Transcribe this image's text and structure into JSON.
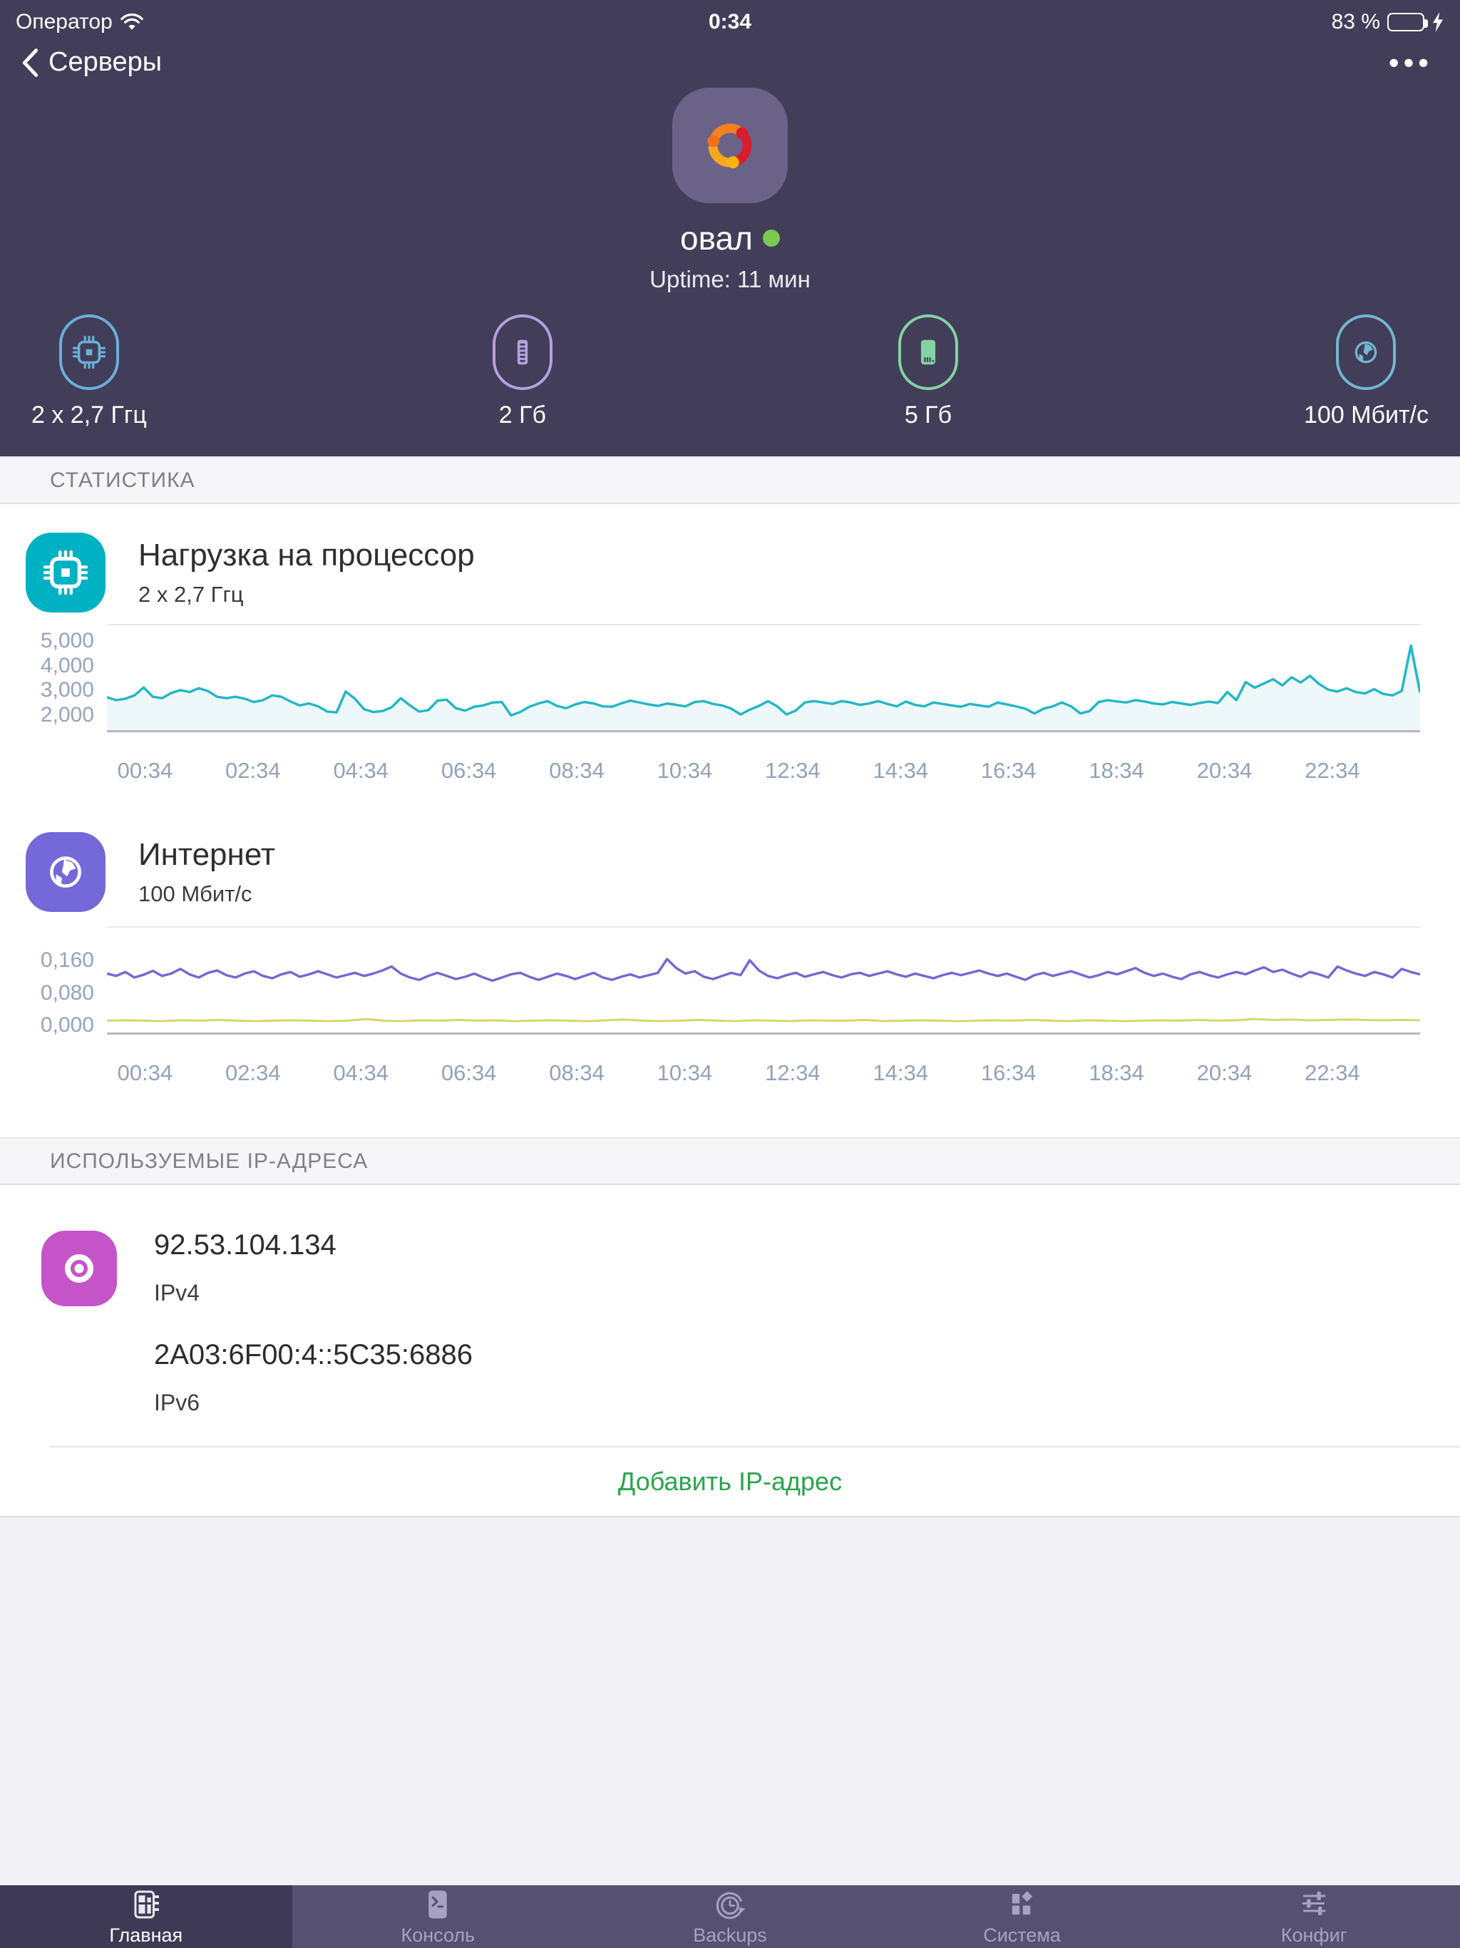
{
  "status_bar": {
    "carrier": "Оператор",
    "time": "0:34",
    "battery_percent": "83 %",
    "battery_level": 83
  },
  "nav": {
    "back_label": "Серверы",
    "more_label": "•••"
  },
  "server": {
    "name": "овал",
    "uptime": "Uptime: 11 мин",
    "os": "ubuntu",
    "status_color": "#7cc851"
  },
  "specs": [
    {
      "icon": "cpu-icon",
      "label": "2 x 2,7 Ггц",
      "color": "#68b0d9"
    },
    {
      "icon": "ram-icon",
      "label": "2 Гб",
      "color": "#b3a2de"
    },
    {
      "icon": "disk-icon",
      "label": "5 Гб",
      "color": "#83d2a4"
    },
    {
      "icon": "network-icon",
      "label": "100 Мбит/с",
      "color": "#72b7cf"
    }
  ],
  "sections": {
    "statistics": "СТАТИСТИКА",
    "ip_addresses": "ИСПОЛЬЗУЕМЫЕ IP-АДРЕСА"
  },
  "cpu_card": {
    "title": "Нагрузка на процессор",
    "subtitle": "2 x 2,7 Ггц",
    "accent": "#00b1c4"
  },
  "net_card": {
    "title": "Интернет",
    "subtitle": "100 Мбит/с",
    "accent": "#7568d8"
  },
  "chart_data": [
    {
      "type": "line",
      "title": "Нагрузка на процессор",
      "ylabel": "",
      "xlabel": "",
      "ylim": [
        1300,
        5700
      ],
      "grid": false,
      "yticks": [
        {
          "value": 2000,
          "label": "2,000"
        },
        {
          "value": 3000,
          "label": "3,000"
        },
        {
          "value": 4000,
          "label": "4,000"
        },
        {
          "value": 5000,
          "label": "5,000"
        }
      ],
      "x_labels": [
        "00:34",
        "02:34",
        "04:34",
        "06:34",
        "08:34",
        "10:34",
        "12:34",
        "14:34",
        "16:34",
        "18:34",
        "20:34",
        "22:34"
      ],
      "x_first_frac": 0.029,
      "x_step_frac": 0.0822,
      "series": [
        {
          "color": "#22b6c7",
          "stroke_width": 3.5,
          "fill": "#eef8fa",
          "values": [
            2680,
            2560,
            2620,
            2760,
            3090,
            2700,
            2640,
            2860,
            2980,
            2900,
            3060,
            2940,
            2700,
            2640,
            2700,
            2620,
            2480,
            2560,
            2760,
            2700,
            2500,
            2340,
            2420,
            2300,
            2080,
            2040,
            2920,
            2620,
            2180,
            2060,
            2100,
            2260,
            2640,
            2340,
            2080,
            2140,
            2540,
            2580,
            2220,
            2120,
            2280,
            2340,
            2460,
            2480,
            1920,
            2060,
            2280,
            2420,
            2520,
            2320,
            2220,
            2380,
            2480,
            2420,
            2300,
            2280,
            2420,
            2540,
            2460,
            2380,
            2320,
            2420,
            2360,
            2300,
            2480,
            2520,
            2400,
            2340,
            2200,
            1960,
            2160,
            2320,
            2520,
            2300,
            1960,
            2120,
            2460,
            2520,
            2460,
            2400,
            2520,
            2460,
            2360,
            2420,
            2520,
            2400,
            2300,
            2500,
            2360,
            2300,
            2460,
            2400,
            2340,
            2280,
            2400,
            2340,
            2280,
            2460,
            2380,
            2300,
            2200,
            2000,
            2200,
            2300,
            2460,
            2300,
            2000,
            2100,
            2480,
            2560,
            2500,
            2460,
            2560,
            2500,
            2420,
            2380,
            2480,
            2420,
            2360,
            2440,
            2500,
            2440,
            2900,
            2560,
            3320,
            3080,
            3260,
            3440,
            3180,
            3520,
            3300,
            3580,
            3240,
            3000,
            2920,
            3060,
            2900,
            2840,
            3020,
            2820,
            2760,
            2940,
            4850,
            2880
          ]
        }
      ]
    },
    {
      "type": "line",
      "title": "Интернет",
      "ylabel": "",
      "xlabel": "",
      "ylim": [
        -0.022,
        0.245
      ],
      "grid": false,
      "yticks": [
        {
          "value": 0.0,
          "label": "0,000"
        },
        {
          "value": 0.08,
          "label": "0,080"
        },
        {
          "value": 0.16,
          "label": "0,160"
        }
      ],
      "x_labels": [
        "00:34",
        "02:34",
        "04:34",
        "06:34",
        "08:34",
        "10:34",
        "12:34",
        "14:34",
        "16:34",
        "18:34",
        "20:34",
        "22:34"
      ],
      "x_first_frac": 0.029,
      "x_step_frac": 0.0822,
      "series": [
        {
          "color": "#7468d1",
          "stroke_width": 3.5,
          "values": [
            0.128,
            0.122,
            0.132,
            0.118,
            0.125,
            0.135,
            0.122,
            0.128,
            0.14,
            0.126,
            0.118,
            0.13,
            0.136,
            0.124,
            0.118,
            0.128,
            0.134,
            0.122,
            0.116,
            0.126,
            0.132,
            0.12,
            0.126,
            0.134,
            0.126,
            0.118,
            0.124,
            0.13,
            0.122,
            0.128,
            0.136,
            0.146,
            0.128,
            0.118,
            0.112,
            0.122,
            0.13,
            0.122,
            0.114,
            0.12,
            0.128,
            0.118,
            0.11,
            0.118,
            0.126,
            0.13,
            0.12,
            0.112,
            0.12,
            0.128,
            0.122,
            0.114,
            0.122,
            0.13,
            0.118,
            0.112,
            0.12,
            0.126,
            0.118,
            0.124,
            0.13,
            0.165,
            0.142,
            0.128,
            0.134,
            0.12,
            0.114,
            0.122,
            0.13,
            0.124,
            0.162,
            0.136,
            0.122,
            0.116,
            0.124,
            0.13,
            0.12,
            0.126,
            0.132,
            0.124,
            0.118,
            0.126,
            0.13,
            0.122,
            0.128,
            0.134,
            0.126,
            0.12,
            0.128,
            0.122,
            0.116,
            0.124,
            0.13,
            0.124,
            0.13,
            0.136,
            0.128,
            0.122,
            0.128,
            0.12,
            0.112,
            0.124,
            0.13,
            0.122,
            0.128,
            0.134,
            0.126,
            0.118,
            0.124,
            0.132,
            0.126,
            0.134,
            0.142,
            0.13,
            0.122,
            0.128,
            0.12,
            0.114,
            0.126,
            0.132,
            0.124,
            0.118,
            0.126,
            0.132,
            0.126,
            0.136,
            0.144,
            0.132,
            0.138,
            0.128,
            0.12,
            0.132,
            0.126,
            0.118,
            0.146,
            0.136,
            0.128,
            0.122,
            0.132,
            0.126,
            0.118,
            0.14,
            0.132,
            0.126
          ]
        },
        {
          "color": "#d3d766",
          "stroke_width": 3,
          "values": [
            0.008,
            0.009,
            0.008,
            0.007,
            0.009,
            0.008,
            0.01,
            0.008,
            0.007,
            0.008,
            0.009,
            0.008,
            0.007,
            0.008,
            0.012,
            0.008,
            0.007,
            0.009,
            0.008,
            0.01,
            0.008,
            0.009,
            0.007,
            0.008,
            0.009,
            0.008,
            0.007,
            0.009,
            0.011,
            0.008,
            0.007,
            0.008,
            0.01,
            0.008,
            0.007,
            0.009,
            0.008,
            0.007,
            0.009,
            0.008,
            0.008,
            0.01,
            0.007,
            0.008,
            0.009,
            0.008,
            0.007,
            0.008,
            0.009,
            0.008,
            0.01,
            0.008,
            0.007,
            0.009,
            0.008,
            0.007,
            0.008,
            0.009,
            0.008,
            0.01,
            0.008,
            0.009,
            0.012,
            0.01,
            0.011,
            0.009,
            0.01,
            0.011,
            0.01,
            0.009,
            0.01,
            0.009
          ]
        }
      ]
    }
  ],
  "ips": {
    "items": [
      {
        "address": "92.53.104.134",
        "type": "IPv4"
      },
      {
        "address": "2A03:6F00:4::5C35:6886",
        "type": "IPv6"
      }
    ],
    "add_label": "Добавить IP-адрес"
  },
  "tabbar": {
    "items": [
      {
        "icon": "dashboard-icon",
        "label": "Главная",
        "active": true
      },
      {
        "icon": "console-icon",
        "label": "Консоль",
        "active": false
      },
      {
        "icon": "backups-icon",
        "label": "Backups",
        "active": false
      },
      {
        "icon": "system-icon",
        "label": "Система",
        "active": false
      },
      {
        "icon": "config-icon",
        "label": "Конфиг",
        "active": false
      }
    ]
  }
}
